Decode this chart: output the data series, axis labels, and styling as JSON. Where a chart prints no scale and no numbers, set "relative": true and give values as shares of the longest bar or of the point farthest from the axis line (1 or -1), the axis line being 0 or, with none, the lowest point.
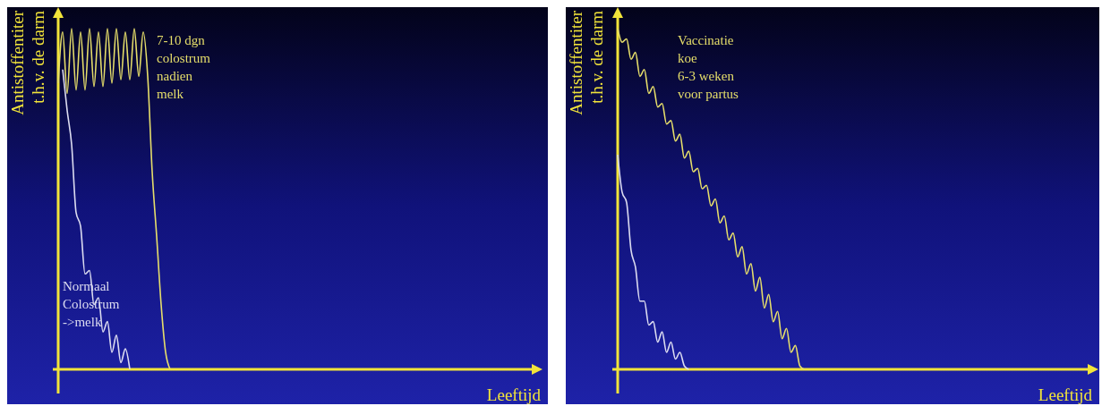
{
  "chart_data": [
    {
      "type": "line",
      "relative": true,
      "xlabel": "Leeftijd",
      "ylabel": "Antistoffentiter\nt.h.v. de darm",
      "marker": "none",
      "line_style": "solid",
      "categories": [
        null,
        null,
        null,
        null,
        null,
        null,
        null,
        null,
        null,
        null,
        null,
        null,
        null,
        null,
        null,
        null,
        null,
        null,
        null,
        null,
        null,
        null,
        null,
        null,
        null,
        null,
        null,
        null,
        null,
        null,
        null,
        null,
        null,
        null,
        null,
        null,
        null,
        null,
        null,
        null,
        null,
        null,
        null,
        null,
        null,
        null,
        null,
        null,
        null,
        null,
        null,
        null,
        null,
        null,
        null,
        null,
        null,
        null,
        null,
        null,
        null,
        null,
        null,
        null,
        null,
        null,
        null,
        null,
        null,
        null,
        null,
        null,
        null,
        null,
        null,
        null,
        null,
        null,
        null,
        null,
        null,
        null,
        null,
        null,
        null,
        null,
        null,
        null,
        null,
        null,
        null,
        null,
        null,
        null,
        null,
        null,
        null,
        null,
        null,
        null,
        null,
        null,
        null,
        null,
        null,
        null,
        null,
        null
      ],
      "series": [
        {
          "name": "7-10 dgn\ncolostrum\nnadien\nmelk",
          "color": "#e6de6a",
          "values": [
            0.84,
            0.99,
            0.81,
            1.0,
            0.82,
            0.99,
            0.82,
            1.0,
            0.83,
            0.99,
            0.83,
            1.0,
            0.84,
            1.0,
            0.85,
            0.99,
            0.85,
            1.0,
            0.86,
            0.99,
            0.86,
            0.58,
            0.39,
            0.19,
            0.05,
            0,
            null,
            null,
            null,
            null,
            null,
            null,
            null,
            null,
            null,
            null,
            null,
            null,
            null,
            null,
            null,
            null,
            null,
            null,
            null,
            null,
            null,
            null,
            null,
            null,
            null,
            null,
            null,
            null,
            null,
            null,
            null,
            null,
            null,
            null,
            null,
            null,
            null,
            null,
            null,
            null,
            null,
            null,
            null,
            null,
            null,
            null,
            null,
            null,
            null,
            null,
            null,
            null,
            null,
            null,
            null,
            null,
            null,
            null,
            null,
            null,
            null,
            null,
            null,
            null,
            null,
            null,
            null,
            null,
            null,
            null,
            null,
            null,
            null,
            null,
            null,
            null,
            null,
            null,
            null,
            null,
            null,
            null
          ]
        },
        {
          "name": "Normaal\nColostrum\n->melk",
          "color": "#dcdcf0",
          "values": [
            null,
            0.88,
            0.76,
            0.66,
            0.46,
            0.42,
            0.28,
            0.29,
            0.19,
            0.21,
            0.11,
            0.14,
            0.05,
            0.1,
            0.02,
            0.06,
            0,
            null,
            null,
            null,
            null,
            null,
            null,
            null,
            null,
            null,
            null,
            null,
            null,
            null,
            null,
            null,
            null,
            null,
            null,
            null,
            null,
            null,
            null,
            null,
            null,
            null,
            null,
            null,
            null,
            null,
            null,
            null,
            null,
            null,
            null,
            null,
            null,
            null,
            null,
            null,
            null,
            null,
            null,
            null,
            null,
            null,
            null,
            null,
            null,
            null,
            null,
            null,
            null,
            null,
            null,
            null,
            null,
            null,
            null,
            null,
            null,
            null,
            null,
            null,
            null,
            null,
            null,
            null,
            null,
            null,
            null,
            null,
            null,
            null,
            null,
            null,
            null,
            null,
            null,
            null,
            null,
            null,
            null,
            null,
            null,
            null,
            null,
            null,
            null,
            null,
            null,
            null
          ]
        }
      ]
    },
    {
      "type": "line",
      "relative": true,
      "xlabel": "Leeftijd",
      "ylabel": "Antistoffentiter\nt.h.v. de darm",
      "marker": "none",
      "line_style": "solid",
      "categories": [
        null,
        null,
        null,
        null,
        null,
        null,
        null,
        null,
        null,
        null,
        null,
        null,
        null,
        null,
        null,
        null,
        null,
        null,
        null,
        null,
        null,
        null,
        null,
        null,
        null,
        null,
        null,
        null,
        null,
        null,
        null,
        null,
        null,
        null,
        null,
        null,
        null,
        null,
        null,
        null,
        null,
        null,
        null,
        null,
        null,
        null,
        null,
        null,
        null,
        null,
        null,
        null,
        null,
        null,
        null,
        null,
        null,
        null,
        null,
        null,
        null,
        null,
        null,
        null,
        null,
        null,
        null,
        null,
        null,
        null,
        null,
        null,
        null,
        null,
        null,
        null,
        null,
        null,
        null,
        null,
        null,
        null,
        null,
        null,
        null,
        null,
        null,
        null,
        null,
        null,
        null,
        null,
        null,
        null,
        null,
        null,
        null,
        null,
        null,
        null,
        null,
        null,
        null,
        null,
        null,
        null,
        null,
        null
      ],
      "series": [
        {
          "name": "Vaccinatie\nkoe\n6-3 weken\nvoor partus",
          "color": "#e6de6a",
          "values": [
            1.0,
            0.96,
            0.97,
            0.91,
            0.93,
            0.86,
            0.88,
            0.81,
            0.83,
            0.77,
            0.78,
            0.72,
            0.73,
            0.67,
            0.69,
            0.62,
            0.64,
            0.58,
            0.59,
            0.53,
            0.54,
            0.48,
            0.5,
            0.43,
            0.45,
            0.38,
            0.4,
            0.33,
            0.36,
            0.28,
            0.31,
            0.23,
            0.27,
            0.18,
            0.22,
            0.14,
            0.17,
            0.09,
            0.12,
            0.05,
            0.07,
            0.01,
            0,
            null,
            null,
            null,
            null,
            null,
            null,
            null,
            null,
            null,
            null,
            null,
            null,
            null,
            null,
            null,
            null,
            null,
            null,
            null,
            null,
            null,
            null,
            null,
            null,
            null,
            null,
            null,
            null,
            null,
            null,
            null,
            null,
            null,
            null,
            null,
            null,
            null,
            null,
            null,
            null,
            null,
            null,
            null,
            null,
            null,
            null,
            null,
            null,
            null,
            null,
            null,
            null,
            null,
            null,
            null,
            null,
            null,
            null,
            null,
            null,
            null,
            null,
            null,
            null,
            null
          ]
        },
        {
          "color": "#dcdcf0",
          "values": [
            0.63,
            0.52,
            0.49,
            0.35,
            0.3,
            0.2,
            0.2,
            0.13,
            0.14,
            0.08,
            0.11,
            0.05,
            0.08,
            0.03,
            0.05,
            0.01,
            0,
            null,
            null,
            null,
            null,
            null,
            null,
            null,
            null,
            null,
            null,
            null,
            null,
            null,
            null,
            null,
            null,
            null,
            null,
            null,
            null,
            null,
            null,
            null,
            null,
            null,
            null,
            null,
            null,
            null,
            null,
            null,
            null,
            null,
            null,
            null,
            null,
            null,
            null,
            null,
            null,
            null,
            null,
            null,
            null,
            null,
            null,
            null,
            null,
            null,
            null,
            null,
            null,
            null,
            null,
            null,
            null,
            null,
            null,
            null,
            null,
            null,
            null,
            null,
            null,
            null,
            null,
            null,
            null,
            null,
            null,
            null,
            null,
            null,
            null,
            null,
            null,
            null,
            null,
            null,
            null,
            null,
            null,
            null,
            null,
            null,
            null,
            null,
            null,
            null,
            null,
            null
          ]
        }
      ]
    }
  ]
}
